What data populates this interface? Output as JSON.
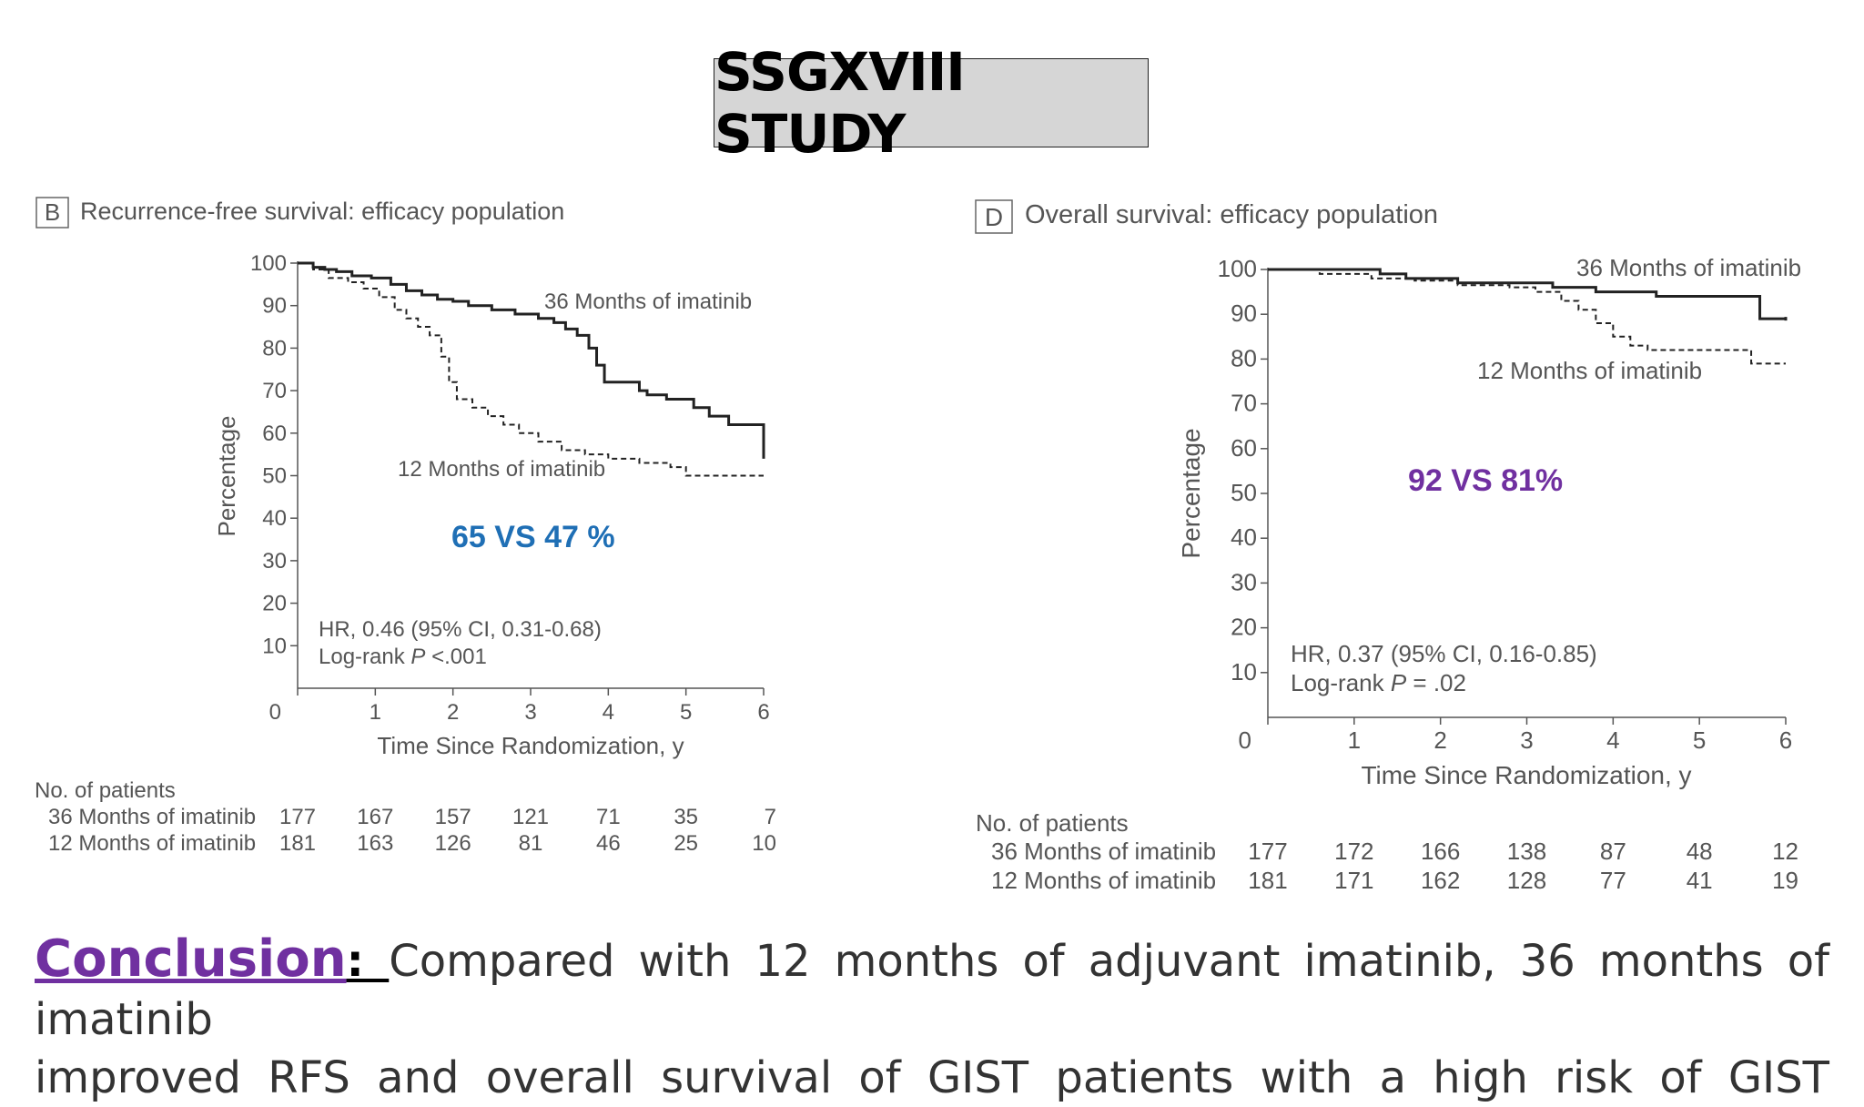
{
  "slide_title": "SSGXVIII STUDY",
  "conclusion": {
    "label": "Conclusion",
    "colon": ": ",
    "line1": "Compared with 12 months of adjuvant imatinib, 36 months of imatinib",
    "line2": "improved RFS and overall survival of GIST patients with a high risk of GIST"
  },
  "chart_data": [
    {
      "type": "line",
      "panel_letter": "B",
      "title": "Recurrence-free survival: efficacy population",
      "xlabel": "Time Since Randomization, y",
      "ylabel": "Percentage",
      "xlim": [
        0,
        6
      ],
      "ylim": [
        0,
        100
      ],
      "xticks": [
        0,
        1,
        2,
        3,
        4,
        5,
        6
      ],
      "yticks": [
        10,
        20,
        30,
        40,
        50,
        60,
        70,
        80,
        90,
        100
      ],
      "grid": false,
      "series": [
        {
          "name": "36 Months of imatinib",
          "style": "solid",
          "x": [
            0,
            0.2,
            0.35,
            0.5,
            0.7,
            0.95,
            1.2,
            1.4,
            1.6,
            1.8,
            2.0,
            2.2,
            2.5,
            2.8,
            3.1,
            3.3,
            3.45,
            3.6,
            3.75,
            3.85,
            3.95,
            4.05,
            4.4,
            4.5,
            4.75,
            5.1,
            5.3,
            5.55,
            5.75,
            6.0,
            6.0
          ],
          "y": [
            100,
            99,
            98.5,
            98,
            97,
            96.5,
            95,
            93.5,
            92.5,
            91.5,
            91,
            90,
            89,
            88,
            87,
            86,
            84.5,
            83,
            80,
            76,
            72,
            72,
            70,
            69,
            68,
            66,
            64,
            62,
            62,
            62,
            54
          ]
        },
        {
          "name": "12 Months of imatinib",
          "style": "dashed",
          "x": [
            0,
            0.2,
            0.4,
            0.65,
            0.85,
            1.05,
            1.25,
            1.4,
            1.55,
            1.7,
            1.85,
            1.95,
            2.05,
            2.25,
            2.45,
            2.65,
            2.85,
            3.1,
            3.4,
            3.7,
            4.0,
            4.4,
            4.8,
            5.0,
            6.0
          ],
          "y": [
            100,
            98.5,
            96.5,
            95.5,
            94,
            92,
            89,
            87,
            85,
            83,
            78,
            72,
            68,
            66,
            64,
            62,
            60,
            58,
            56,
            55,
            54,
            53,
            52,
            50,
            50
          ]
        }
      ],
      "annotations": {
        "series_label_36": "36 Months of imatinib",
        "series_label_12": "12 Months of imatinib",
        "comparison": "65 VS 47 %",
        "comparison_color": "#1f6fb5",
        "hr": "HR, 0.46 (95% CI, 0.31-0.68)",
        "logrank_prefix": "Log-rank ",
        "logrank_p": "P",
        "logrank_value": " <.001"
      },
      "risk_table": {
        "header": "No. of patients",
        "rows": [
          {
            "label": "36 Months of imatinib",
            "values": [
              "177",
              "167",
              "157",
              "121",
              "71",
              "35",
              "7"
            ]
          },
          {
            "label": "12 Months of imatinib",
            "values": [
              "181",
              "163",
              "126",
              "81",
              "46",
              "25",
              "10"
            ]
          }
        ]
      }
    },
    {
      "type": "line",
      "panel_letter": "D",
      "title": "Overall survival: efficacy population",
      "xlabel": "Time Since Randomization, y",
      "ylabel": "Percentage",
      "xlim": [
        0,
        6
      ],
      "ylim": [
        0,
        100
      ],
      "xticks": [
        0,
        1,
        2,
        3,
        4,
        5,
        6
      ],
      "yticks": [
        10,
        20,
        30,
        40,
        50,
        60,
        70,
        80,
        90,
        100
      ],
      "grid": false,
      "series": [
        {
          "name": "36 Months of imatinib",
          "style": "solid",
          "x": [
            0,
            1.0,
            1.3,
            1.6,
            2.2,
            3.3,
            3.8,
            4.5,
            5.3,
            5.7,
            5.7,
            6.0
          ],
          "y": [
            100,
            100,
            99,
            98,
            97,
            96,
            95,
            94,
            94,
            94,
            89,
            89
          ],
          "end_marker": true
        },
        {
          "name": "12 Months of imatinib",
          "style": "dashed",
          "x": [
            0,
            0.6,
            1.2,
            1.7,
            2.2,
            2.8,
            3.1,
            3.4,
            3.6,
            3.8,
            4.0,
            4.2,
            4.4,
            4.7,
            5.4,
            5.6,
            6.0
          ],
          "y": [
            100,
            99,
            98,
            97.5,
            96.5,
            96,
            95,
            93,
            91,
            88,
            85,
            83,
            82,
            82,
            82,
            79,
            79
          ]
        }
      ],
      "annotations": {
        "series_label_36": "36 Months of imatinib",
        "series_label_12": "12 Months of imatinib",
        "comparison": "92 VS 81%",
        "comparison_color": "#7030a0",
        "hr": "HR, 0.37 (95% CI, 0.16-0.85)",
        "logrank_prefix": "Log-rank ",
        "logrank_p": "P",
        "logrank_value": " = .02"
      },
      "risk_table": {
        "header": "No. of patients",
        "rows": [
          {
            "label": "36 Months of imatinib",
            "values": [
              "177",
              "172",
              "166",
              "138",
              "87",
              "48",
              "12"
            ]
          },
          {
            "label": "12 Months of imatinib",
            "values": [
              "181",
              "171",
              "162",
              "128",
              "77",
              "41",
              "19"
            ]
          }
        ]
      }
    }
  ]
}
